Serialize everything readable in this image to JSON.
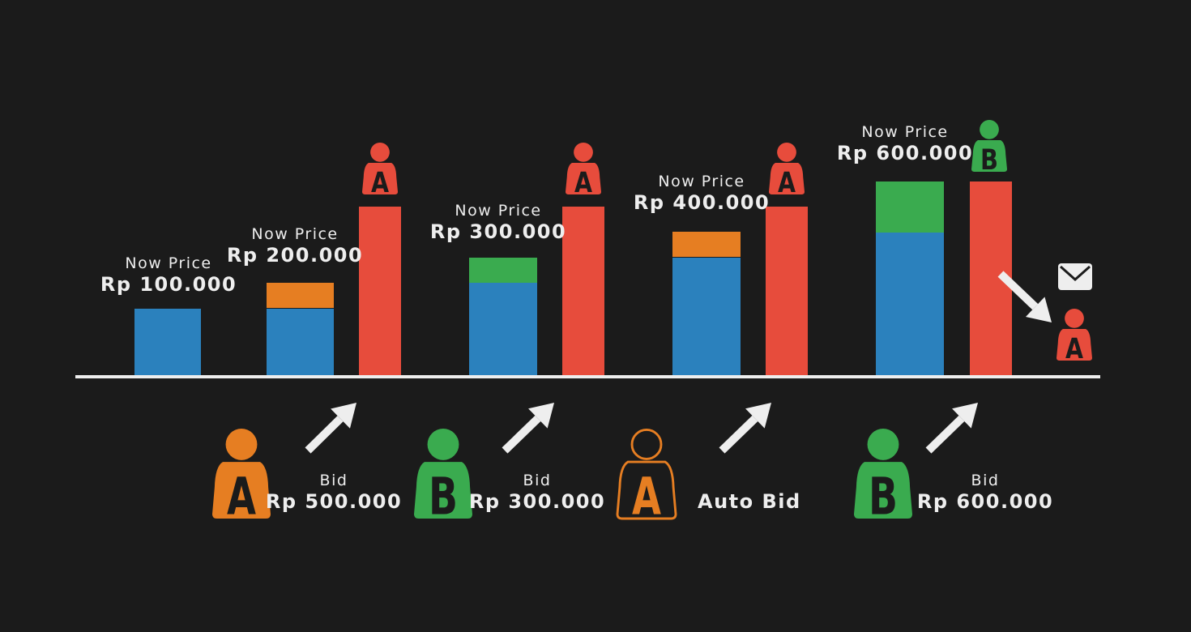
{
  "colors": {
    "background": "#1b1b1b",
    "current_price": "#2b81bd",
    "bidder_a": "#e67e22",
    "bidder_b": "#3aab4f",
    "max_bid": "#e74c3c",
    "line": "#eeeeee",
    "letter": "#1b1b1b"
  },
  "price_labels": [
    {
      "label": "Now Price",
      "value": "Rp 100.000"
    },
    {
      "label": "Now Price",
      "value": "Rp 200.000"
    },
    {
      "label": "Now Price",
      "value": "Rp 300.000"
    },
    {
      "label": "Now Price",
      "value": "Rp 400.000"
    },
    {
      "label": "Now Price",
      "value": "Rp 600.000"
    }
  ],
  "bids": [
    {
      "bidder": "A",
      "label": "Bid",
      "value": "Rp 500.000",
      "style": "filled"
    },
    {
      "bidder": "B",
      "label": "Bid",
      "value": "Rp 300.000",
      "style": "filled"
    },
    {
      "bidder": "A",
      "label": "",
      "value": "Auto Bid",
      "style": "outline"
    },
    {
      "bidder": "B",
      "label": "Bid",
      "value": "Rp 600.000",
      "style": "filled"
    }
  ],
  "top_bidders": [
    "A",
    "A",
    "A",
    "B"
  ],
  "final_bidder": "A",
  "icons": {
    "bidder_person": "person-icon",
    "increase": "arrow-up-right-icon",
    "outbid_notice": "arrow-down-right-icon",
    "notification": "envelope-icon"
  }
}
